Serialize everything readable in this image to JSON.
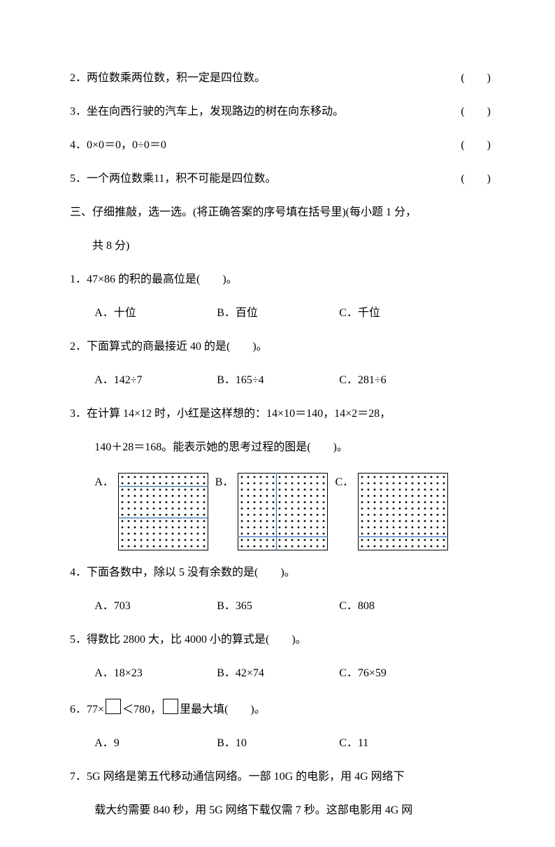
{
  "true_false": [
    {
      "num": "2",
      "text": "两位数乘两位数，积一定是四位数。",
      "paren": "(　　)"
    },
    {
      "num": "3",
      "text": "坐在向西行驶的汽车上，发现路边的树在向东移动。",
      "paren": "(　　)"
    },
    {
      "num": "4",
      "text": "0×0＝0，0÷0＝0",
      "paren": "(　　)"
    },
    {
      "num": "5",
      "text": "一个两位数乘11，积不可能是四位数。",
      "paren": "(　　)"
    }
  ],
  "section3_title": "三、仔细推敲，选一选。(将正确答案的序号填在括号里)(每小题 1 分，",
  "section3_sub": "共 8 分)",
  "q1": {
    "num": "1",
    "text": "47×86 的积的最高位是(　　)。",
    "a": "A．十位",
    "b": "B．百位",
    "c": "C．千位"
  },
  "q2": {
    "num": "2",
    "text": "下面算式的商最接近 40 的是(　　)。",
    "a": "A．142÷7",
    "b": "B．165÷4",
    "c": "C．281÷6"
  },
  "q3": {
    "num": "3",
    "line1": "在计算 14×12 时，小红是这样想的：14×10＝140，14×2＝28，",
    "line2": "140＋28＝168。能表示她的思考过程的图是(　　)。",
    "a": "A．",
    "b": "B．",
    "c": "C．"
  },
  "q4": {
    "num": "4",
    "text": "下面各数中，除以 5 没有余数的是(　　)。",
    "a": "A．703",
    "b": "B．365",
    "c": "C．808"
  },
  "q5": {
    "num": "5",
    "text": "得数比 2800 大，比 4000 小的算式是(　　)。",
    "a": "A．18×23",
    "b": "B．42×74",
    "c": "C．76×59"
  },
  "q6": {
    "num": "6",
    "pre": "77×",
    "mid": "＜780，",
    "post": "里最大填(　　)。",
    "a": "A．9",
    "b": "B．10",
    "c": "C．11"
  },
  "q7": {
    "num": "7",
    "line1": "5G 网络是第五代移动通信网络。一部 10G 的电影，用 4G 网络下",
    "line2": "载大约需要 840 秒，用 5G 网络下载仅需 7 秒。这部电影用 4G 网"
  },
  "dotgrid": {
    "cols": 14,
    "rows": 12,
    "dot_r": 1.4,
    "spacing": 9,
    "pad": 6,
    "fill": "#000000",
    "bg": "#ffffff",
    "border": "#000000",
    "line_color": "#3a6fb7",
    "line_w": 1.2,
    "variants": {
      "A": {
        "h_splits": [
          2,
          7
        ],
        "v_splits": []
      },
      "B": {
        "h_splits": [
          10
        ],
        "v_splits": [
          6
        ]
      },
      "C": {
        "h_splits": [
          10
        ],
        "v_splits": []
      }
    }
  }
}
